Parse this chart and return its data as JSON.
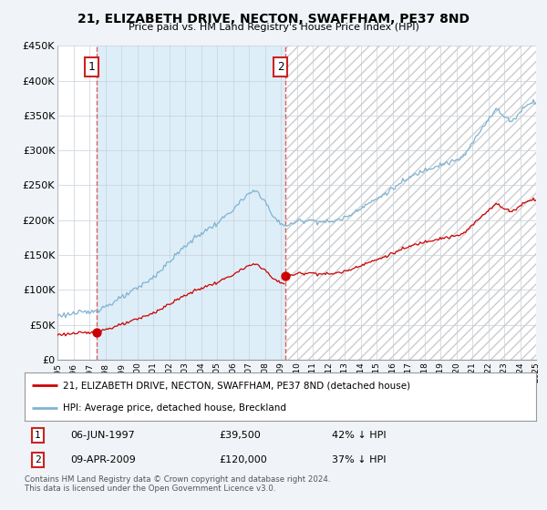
{
  "title": "21, ELIZABETH DRIVE, NECTON, SWAFFHAM, PE37 8ND",
  "subtitle": "Price paid vs. HM Land Registry's House Price Index (HPI)",
  "ylim": [
    0,
    450000
  ],
  "yticks": [
    0,
    50000,
    100000,
    150000,
    200000,
    250000,
    300000,
    350000,
    400000,
    450000
  ],
  "ytick_labels": [
    "£0",
    "£50K",
    "£100K",
    "£150K",
    "£200K",
    "£250K",
    "£300K",
    "£350K",
    "£400K",
    "£450K"
  ],
  "legend_property_label": "21, ELIZABETH DRIVE, NECTON, SWAFFHAM, PE37 8ND (detached house)",
  "legend_hpi_label": "HPI: Average price, detached house, Breckland",
  "property_color": "#cc0000",
  "hpi_color": "#7fb3d3",
  "shade_color": "#ddeef8",
  "transaction1_date": "06-JUN-1997",
  "transaction1_price": "£39,500",
  "transaction1_pct": "42% ↓ HPI",
  "transaction1_year": 1997.43,
  "transaction1_value": 39500,
  "transaction2_date": "09-APR-2009",
  "transaction2_price": "£120,000",
  "transaction2_pct": "37% ↓ HPI",
  "transaction2_year": 2009.27,
  "transaction2_value": 120000,
  "footer": "Contains HM Land Registry data © Crown copyright and database right 2024.\nThis data is licensed under the Open Government Licence v3.0.",
  "background_color": "#f0f4f8",
  "plot_bg_color": "#ffffff",
  "grid_color": "#c8d0da",
  "xlim_start": 1995,
  "xlim_end": 2025
}
